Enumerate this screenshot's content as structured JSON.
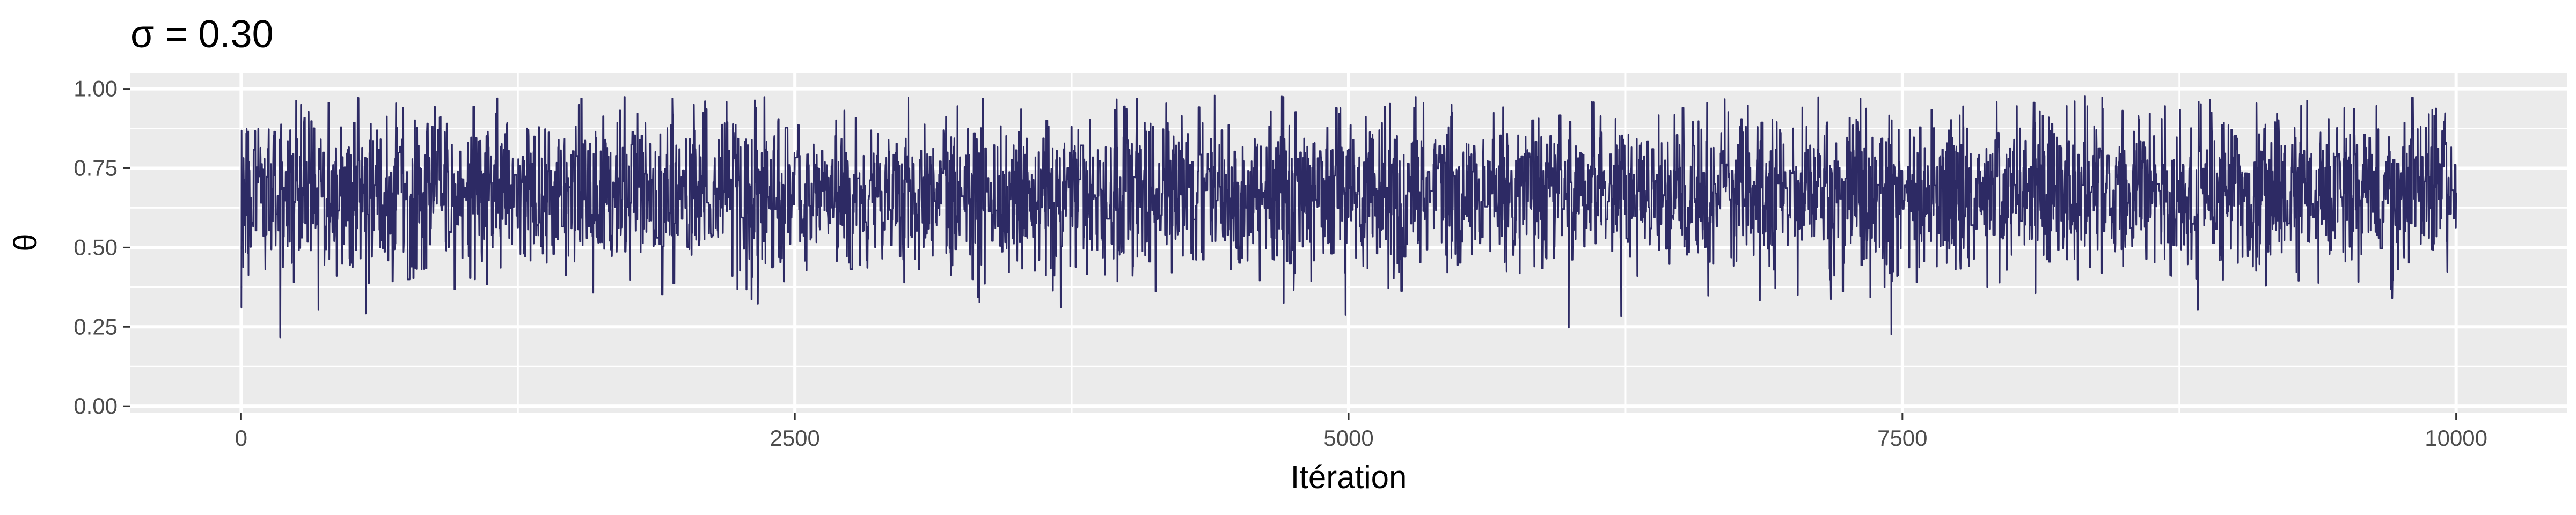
{
  "chart_data": {
    "type": "line",
    "title": "σ = 0.30",
    "xlabel": "Itération",
    "ylabel": "θ",
    "xlim": [
      -500,
      10500
    ],
    "ylim": [
      -0.02,
      1.05
    ],
    "x_ticks": [
      0,
      2500,
      5000,
      7500,
      10000
    ],
    "x_tick_labels": [
      "0",
      "2500",
      "5000",
      "7500",
      "10000"
    ],
    "y_ticks": [
      0,
      0.25,
      0.5,
      0.75,
      1.0
    ],
    "y_tick_labels": [
      "0.00",
      "0.25",
      "0.50",
      "0.75",
      "1.00"
    ],
    "grid": true,
    "legend": "none",
    "series": [
      {
        "x_start": 0,
        "x_end": 10000,
        "n_points": 10001,
        "start_value": 0.31,
        "mean": 0.67,
        "spread": [
          0.18,
          0.98
        ],
        "color": "#2d2a64"
      }
    ],
    "panel_background": "#ebebeb",
    "grid_color": "#ffffff"
  }
}
